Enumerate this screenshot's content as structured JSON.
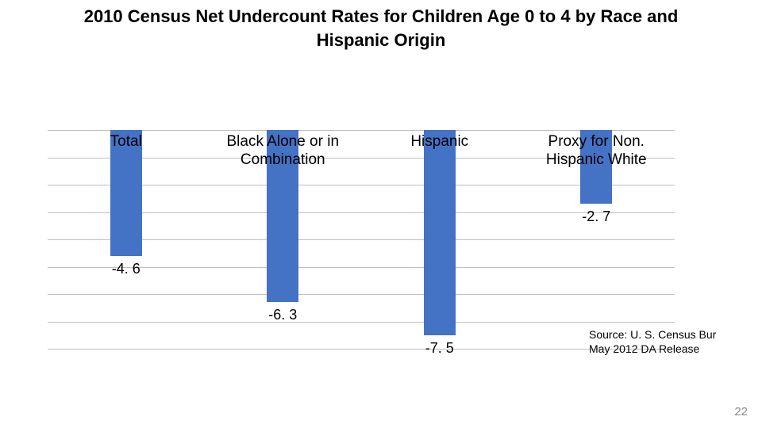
{
  "title": "2010 Census Net Undercount Rates for Children Age 0 to 4 by Race and Hispanic Origin",
  "chart": {
    "type": "bar",
    "y_min": -8,
    "y_max": 1,
    "gridline_values": [
      0,
      -1,
      -2,
      -3,
      -4,
      -5,
      -6,
      -7,
      -8
    ],
    "grid_color": "#bfbfbf",
    "bar_color": "#4472c4",
    "cat_font_size": 19,
    "val_font_size": 18,
    "categories": [
      {
        "label": "Total",
        "value": -4.6,
        "value_text": "-4. 6"
      },
      {
        "label": "Black Alone or in Combination",
        "value": -6.3,
        "value_text": "-6. 3"
      },
      {
        "label": "Hispanic",
        "value": -7.5,
        "value_text": "-7. 5"
      },
      {
        "label": "Proxy for Non. Hispanic White",
        "value": -2.7,
        "value_text": "-2. 7"
      }
    ]
  },
  "source_line1": "Source: U. S. Census Bur",
  "source_line2": "May 2012 DA Release",
  "page_number": "22"
}
